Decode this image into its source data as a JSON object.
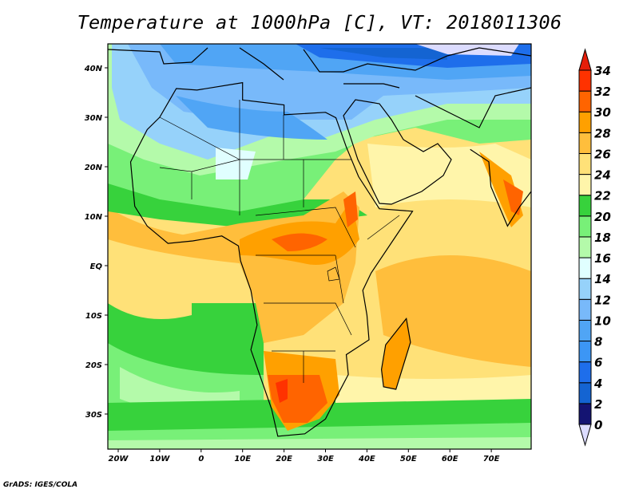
{
  "title": "Temperature at 1000hPa [C], VT: 2018011306",
  "credit": "GrADS: IGES/COLA",
  "axes": {
    "lon_labels": [
      "20W",
      "10W",
      "0",
      "10E",
      "20E",
      "30E",
      "40E",
      "50E",
      "60E",
      "70E"
    ],
    "lat_labels": [
      "40N",
      "30N",
      "20N",
      "10N",
      "EQ",
      "10S",
      "20S",
      "30S"
    ]
  },
  "colorbar": {
    "levels": [
      0,
      2,
      4,
      6,
      8,
      10,
      12,
      14,
      16,
      18,
      20,
      22,
      24,
      26,
      28,
      30,
      32,
      34
    ],
    "colors": [
      "#141472",
      "#1464d2",
      "#1e6eeb",
      "#3c96f5",
      "#50a5f5",
      "#78b9fa",
      "#96d2fa",
      "#e0ffff",
      "#b4faaa",
      "#78f078",
      "#37d23c",
      "#fff5aa",
      "#ffe178",
      "#ffbe3c",
      "#ffa000",
      "#ff6400",
      "#ff3200"
    ],
    "under_color": "#dcdcff",
    "over_color": "#e61e0a"
  }
}
